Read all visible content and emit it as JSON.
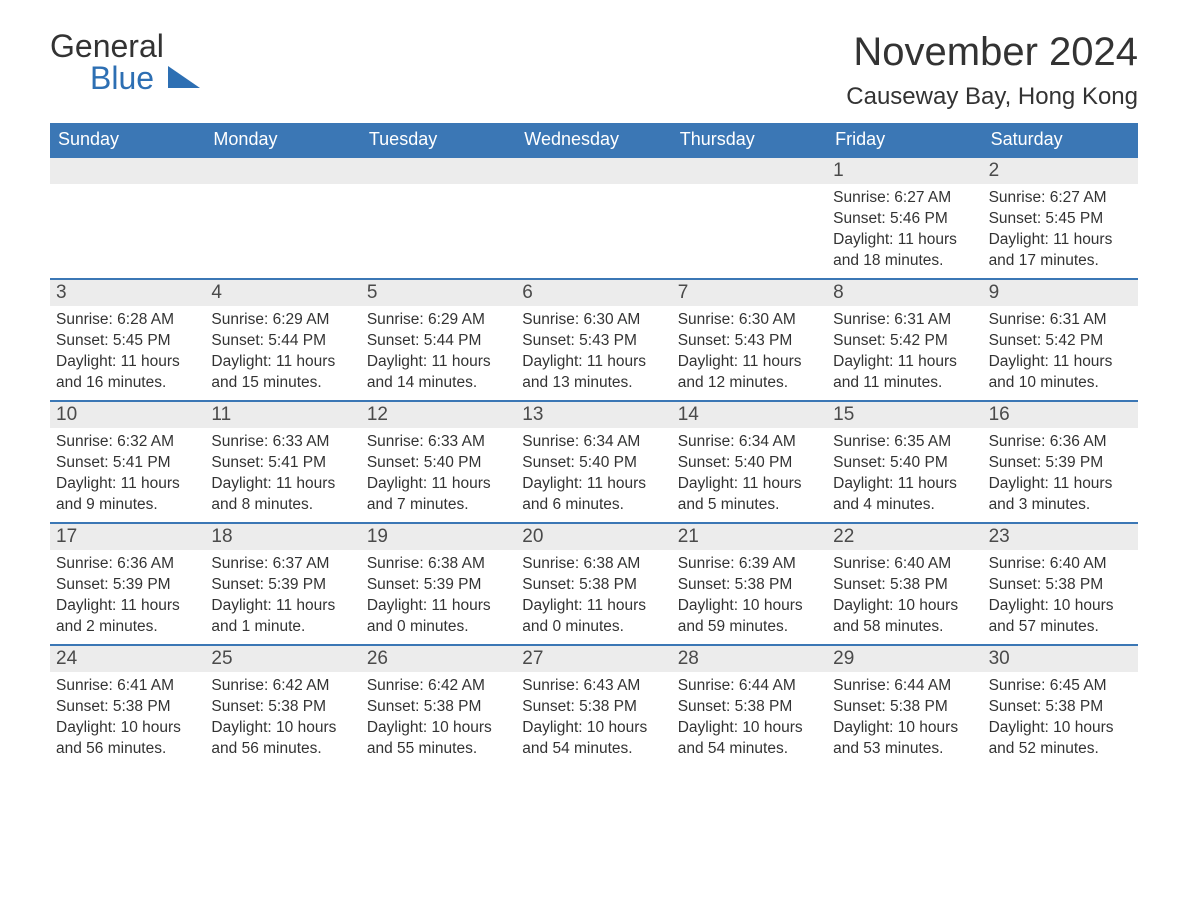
{
  "logo": {
    "text1": "General",
    "text2": "Blue"
  },
  "title": "November 2024",
  "location": "Causeway Bay, Hong Kong",
  "colors": {
    "header_bg": "#3b77b5",
    "header_text": "#ffffff",
    "daynum_bg": "#ececec",
    "text": "#333333",
    "row_border": "#3b77b5",
    "background": "#ffffff",
    "logo_accent": "#2d6fb3"
  },
  "fonts": {
    "title_size": 40,
    "location_size": 24,
    "weekday_size": 18,
    "daynum_size": 19,
    "body_size": 15.5
  },
  "weekdays": [
    "Sunday",
    "Monday",
    "Tuesday",
    "Wednesday",
    "Thursday",
    "Friday",
    "Saturday"
  ],
  "weeks": [
    [
      {
        "blank": true
      },
      {
        "blank": true
      },
      {
        "blank": true
      },
      {
        "blank": true
      },
      {
        "blank": true
      },
      {
        "day": "1",
        "sunrise": "Sunrise: 6:27 AM",
        "sunset": "Sunset: 5:46 PM",
        "daylight1": "Daylight: 11 hours",
        "daylight2": "and 18 minutes."
      },
      {
        "day": "2",
        "sunrise": "Sunrise: 6:27 AM",
        "sunset": "Sunset: 5:45 PM",
        "daylight1": "Daylight: 11 hours",
        "daylight2": "and 17 minutes."
      }
    ],
    [
      {
        "day": "3",
        "sunrise": "Sunrise: 6:28 AM",
        "sunset": "Sunset: 5:45 PM",
        "daylight1": "Daylight: 11 hours",
        "daylight2": "and 16 minutes."
      },
      {
        "day": "4",
        "sunrise": "Sunrise: 6:29 AM",
        "sunset": "Sunset: 5:44 PM",
        "daylight1": "Daylight: 11 hours",
        "daylight2": "and 15 minutes."
      },
      {
        "day": "5",
        "sunrise": "Sunrise: 6:29 AM",
        "sunset": "Sunset: 5:44 PM",
        "daylight1": "Daylight: 11 hours",
        "daylight2": "and 14 minutes."
      },
      {
        "day": "6",
        "sunrise": "Sunrise: 6:30 AM",
        "sunset": "Sunset: 5:43 PM",
        "daylight1": "Daylight: 11 hours",
        "daylight2": "and 13 minutes."
      },
      {
        "day": "7",
        "sunrise": "Sunrise: 6:30 AM",
        "sunset": "Sunset: 5:43 PM",
        "daylight1": "Daylight: 11 hours",
        "daylight2": "and 12 minutes."
      },
      {
        "day": "8",
        "sunrise": "Sunrise: 6:31 AM",
        "sunset": "Sunset: 5:42 PM",
        "daylight1": "Daylight: 11 hours",
        "daylight2": "and 11 minutes."
      },
      {
        "day": "9",
        "sunrise": "Sunrise: 6:31 AM",
        "sunset": "Sunset: 5:42 PM",
        "daylight1": "Daylight: 11 hours",
        "daylight2": "and 10 minutes."
      }
    ],
    [
      {
        "day": "10",
        "sunrise": "Sunrise: 6:32 AM",
        "sunset": "Sunset: 5:41 PM",
        "daylight1": "Daylight: 11 hours",
        "daylight2": "and 9 minutes."
      },
      {
        "day": "11",
        "sunrise": "Sunrise: 6:33 AM",
        "sunset": "Sunset: 5:41 PM",
        "daylight1": "Daylight: 11 hours",
        "daylight2": "and 8 minutes."
      },
      {
        "day": "12",
        "sunrise": "Sunrise: 6:33 AM",
        "sunset": "Sunset: 5:40 PM",
        "daylight1": "Daylight: 11 hours",
        "daylight2": "and 7 minutes."
      },
      {
        "day": "13",
        "sunrise": "Sunrise: 6:34 AM",
        "sunset": "Sunset: 5:40 PM",
        "daylight1": "Daylight: 11 hours",
        "daylight2": "and 6 minutes."
      },
      {
        "day": "14",
        "sunrise": "Sunrise: 6:34 AM",
        "sunset": "Sunset: 5:40 PM",
        "daylight1": "Daylight: 11 hours",
        "daylight2": "and 5 minutes."
      },
      {
        "day": "15",
        "sunrise": "Sunrise: 6:35 AM",
        "sunset": "Sunset: 5:40 PM",
        "daylight1": "Daylight: 11 hours",
        "daylight2": "and 4 minutes."
      },
      {
        "day": "16",
        "sunrise": "Sunrise: 6:36 AM",
        "sunset": "Sunset: 5:39 PM",
        "daylight1": "Daylight: 11 hours",
        "daylight2": "and 3 minutes."
      }
    ],
    [
      {
        "day": "17",
        "sunrise": "Sunrise: 6:36 AM",
        "sunset": "Sunset: 5:39 PM",
        "daylight1": "Daylight: 11 hours",
        "daylight2": "and 2 minutes."
      },
      {
        "day": "18",
        "sunrise": "Sunrise: 6:37 AM",
        "sunset": "Sunset: 5:39 PM",
        "daylight1": "Daylight: 11 hours",
        "daylight2": "and 1 minute."
      },
      {
        "day": "19",
        "sunrise": "Sunrise: 6:38 AM",
        "sunset": "Sunset: 5:39 PM",
        "daylight1": "Daylight: 11 hours",
        "daylight2": "and 0 minutes."
      },
      {
        "day": "20",
        "sunrise": "Sunrise: 6:38 AM",
        "sunset": "Sunset: 5:38 PM",
        "daylight1": "Daylight: 11 hours",
        "daylight2": "and 0 minutes."
      },
      {
        "day": "21",
        "sunrise": "Sunrise: 6:39 AM",
        "sunset": "Sunset: 5:38 PM",
        "daylight1": "Daylight: 10 hours",
        "daylight2": "and 59 minutes."
      },
      {
        "day": "22",
        "sunrise": "Sunrise: 6:40 AM",
        "sunset": "Sunset: 5:38 PM",
        "daylight1": "Daylight: 10 hours",
        "daylight2": "and 58 minutes."
      },
      {
        "day": "23",
        "sunrise": "Sunrise: 6:40 AM",
        "sunset": "Sunset: 5:38 PM",
        "daylight1": "Daylight: 10 hours",
        "daylight2": "and 57 minutes."
      }
    ],
    [
      {
        "day": "24",
        "sunrise": "Sunrise: 6:41 AM",
        "sunset": "Sunset: 5:38 PM",
        "daylight1": "Daylight: 10 hours",
        "daylight2": "and 56 minutes."
      },
      {
        "day": "25",
        "sunrise": "Sunrise: 6:42 AM",
        "sunset": "Sunset: 5:38 PM",
        "daylight1": "Daylight: 10 hours",
        "daylight2": "and 56 minutes."
      },
      {
        "day": "26",
        "sunrise": "Sunrise: 6:42 AM",
        "sunset": "Sunset: 5:38 PM",
        "daylight1": "Daylight: 10 hours",
        "daylight2": "and 55 minutes."
      },
      {
        "day": "27",
        "sunrise": "Sunrise: 6:43 AM",
        "sunset": "Sunset: 5:38 PM",
        "daylight1": "Daylight: 10 hours",
        "daylight2": "and 54 minutes."
      },
      {
        "day": "28",
        "sunrise": "Sunrise: 6:44 AM",
        "sunset": "Sunset: 5:38 PM",
        "daylight1": "Daylight: 10 hours",
        "daylight2": "and 54 minutes."
      },
      {
        "day": "29",
        "sunrise": "Sunrise: 6:44 AM",
        "sunset": "Sunset: 5:38 PM",
        "daylight1": "Daylight: 10 hours",
        "daylight2": "and 53 minutes."
      },
      {
        "day": "30",
        "sunrise": "Sunrise: 6:45 AM",
        "sunset": "Sunset: 5:38 PM",
        "daylight1": "Daylight: 10 hours",
        "daylight2": "and 52 minutes."
      }
    ]
  ]
}
